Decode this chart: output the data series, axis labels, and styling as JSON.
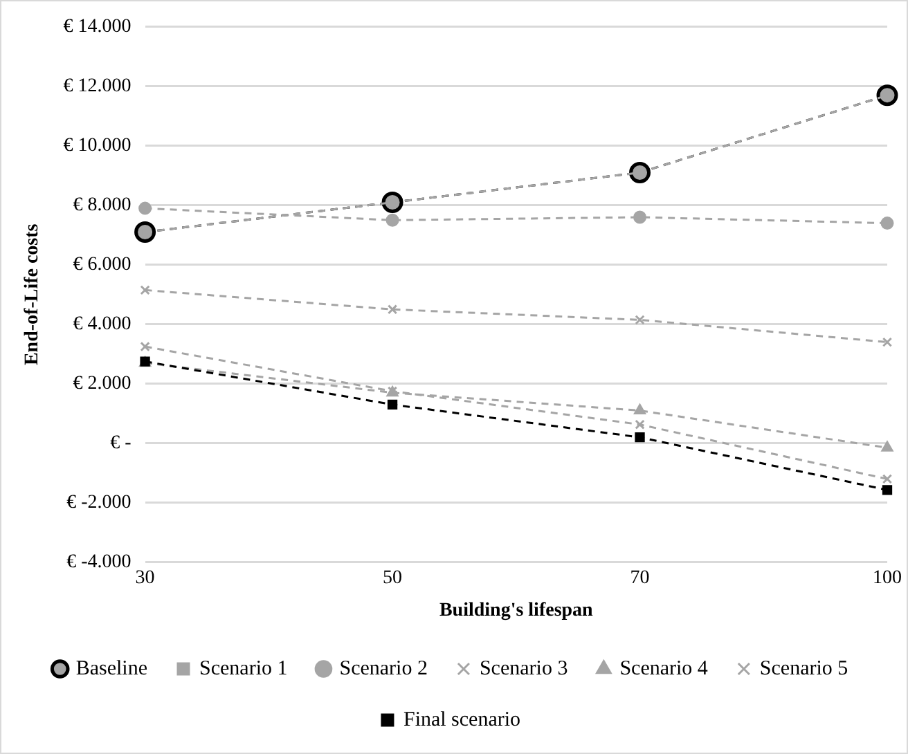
{
  "chart_data": {
    "type": "line",
    "xlabel": "Building's lifespan",
    "ylabel": "End-of-Life costs",
    "categories": [
      "30",
      "50",
      "70",
      "100"
    ],
    "series": [
      {
        "name": "Baseline",
        "color": "#000000",
        "marker": "circle",
        "values": [
          7100,
          8100,
          9100,
          11700
        ]
      },
      {
        "name": "Scenario 1",
        "color": "#a5a5a5",
        "marker": "square",
        "values": [
          7100,
          8100,
          9100,
          11700
        ]
      },
      {
        "name": "Scenario 2",
        "color": "#a5a5a5",
        "marker": "circle",
        "values": [
          7900,
          7500,
          7600,
          7400
        ]
      },
      {
        "name": "Scenario 3",
        "color": "#a5a5a5",
        "marker": "cross",
        "values": [
          5150,
          4500,
          4150,
          3400
        ]
      },
      {
        "name": "Scenario 4",
        "color": "#a5a5a5",
        "marker": "triangle",
        "values": [
          2700,
          1700,
          1100,
          -150
        ]
      },
      {
        "name": "Scenario 5",
        "color": "#a5a5a5",
        "marker": "cross",
        "values": [
          3250,
          1750,
          630,
          -1200
        ]
      },
      {
        "name": "Final scenario",
        "color": "#000000",
        "marker": "square",
        "values": [
          2750,
          1300,
          200,
          -1570
        ]
      }
    ],
    "ylim": [
      -4000,
      14000
    ],
    "yticks": [
      {
        "value": -4000,
        "label": "€ -4.000"
      },
      {
        "value": -2000,
        "label": "€ -2.000"
      },
      {
        "value": 0,
        "label": "€ -"
      },
      {
        "value": 2000,
        "label": "€ 2.000"
      },
      {
        "value": 4000,
        "label": "€ 4.000"
      },
      {
        "value": 6000,
        "label": "€ 6.000"
      },
      {
        "value": 8000,
        "label": "€ 8.000"
      },
      {
        "value": 10000,
        "label": "€ 10.000"
      },
      {
        "value": 12000,
        "label": "€ 12.000"
      },
      {
        "value": 14000,
        "label": "€ 14.000"
      }
    ],
    "grid": "y",
    "legend": "bottom",
    "line_style": "dashed"
  }
}
